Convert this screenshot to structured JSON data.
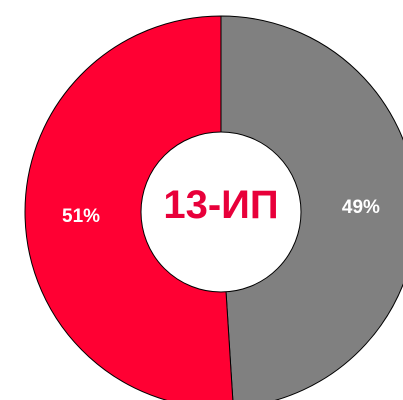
{
  "chart_data": {
    "type": "pie",
    "variant": "donut",
    "center_text": "13-ИП",
    "categories": [
      "",
      ""
    ],
    "values": [
      49,
      51
    ],
    "labels": [
      "49%",
      "51%"
    ],
    "colors": [
      "#808080",
      "#ff0033"
    ],
    "center_text_color": "#e8003a",
    "outline_color": "#000000",
    "legend": "none",
    "title": ""
  }
}
